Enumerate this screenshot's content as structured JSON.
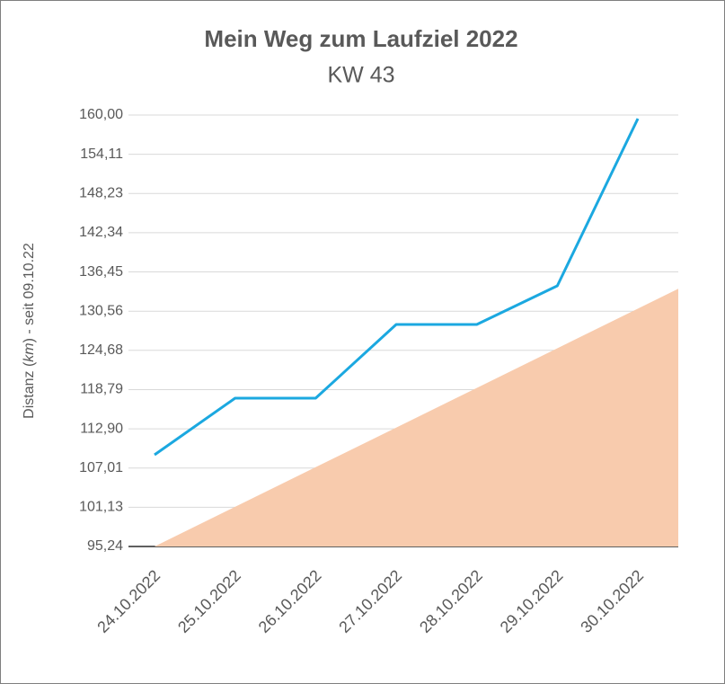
{
  "chart_data": {
    "type": "line",
    "title": "Mein Weg zum Laufziel 2022",
    "subtitle": "KW 43",
    "y_label_parts": [
      "Distanz (",
      "km",
      ") - seit 09.10.22"
    ],
    "categories": [
      "24.10.2022",
      "25.10.2022",
      "26.10.2022",
      "27.10.2022",
      "28.10.2022",
      "29.10.2022",
      "30.10.2022"
    ],
    "series": [
      {
        "color": "#f8cbad",
        "kind": "area",
        "values": [
          95.24,
          101.19,
          107.14,
          113.09,
          119.04,
          124.99,
          130.94
        ]
      },
      {
        "color": "#1ba8e0",
        "kind": "line",
        "values": [
          109.0,
          117.5,
          117.5,
          128.56,
          128.56,
          134.37,
          159.46
        ]
      }
    ],
    "ylim": [
      95.24,
      160.0
    ],
    "yticks": [
      {
        "value": 95.24,
        "label": "95,24"
      },
      {
        "value": 101.13,
        "label": "101,13"
      },
      {
        "value": 107.01,
        "label": "107,01"
      },
      {
        "value": 112.9,
        "label": "112,90"
      },
      {
        "value": 118.79,
        "label": "118,79"
      },
      {
        "value": 124.68,
        "label": "124,68"
      },
      {
        "value": 130.56,
        "label": "130,56"
      },
      {
        "value": 136.45,
        "label": "136,45"
      },
      {
        "value": 142.34,
        "label": "142,34"
      },
      {
        "value": 148.23,
        "label": "148,23"
      },
      {
        "value": 154.11,
        "label": "154,11"
      },
      {
        "value": 160.0,
        "label": "160,00"
      }
    ],
    "grid": true
  }
}
